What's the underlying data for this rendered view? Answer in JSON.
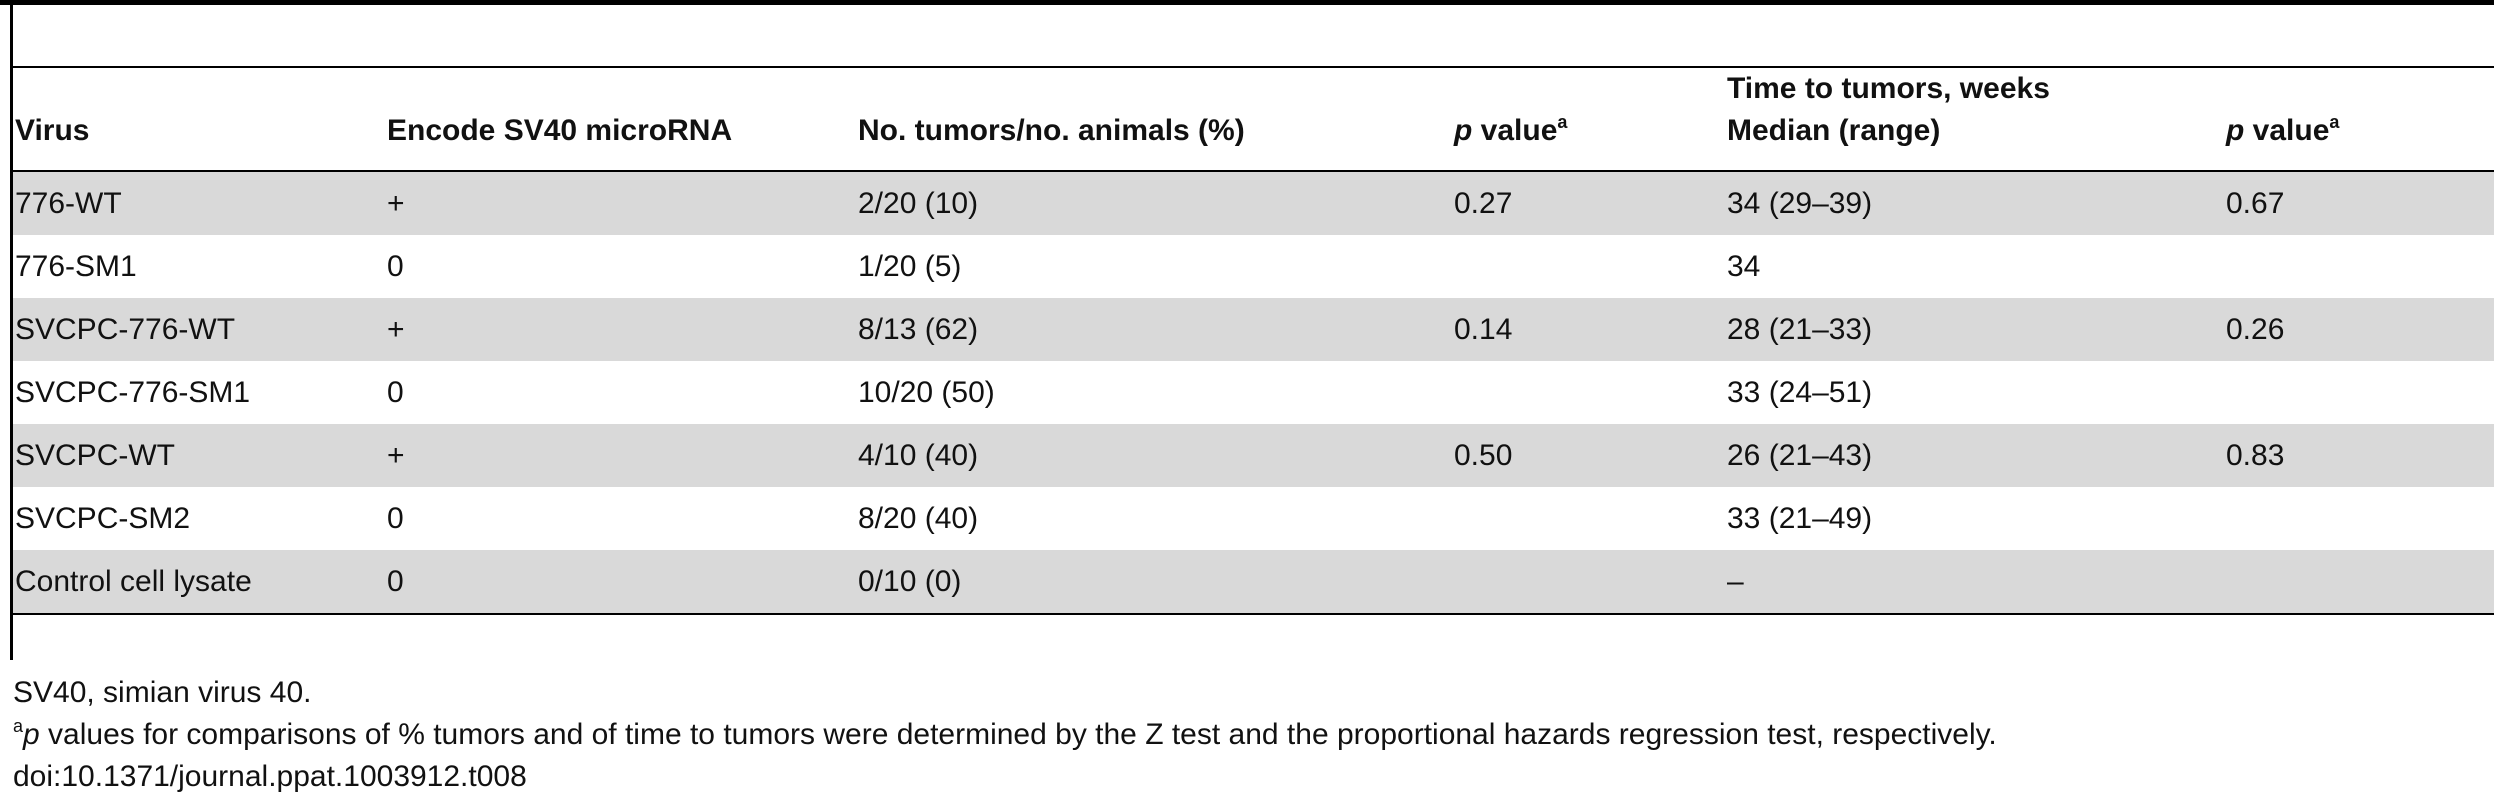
{
  "table": {
    "headers": {
      "virus": "Virus",
      "encode": "Encode SV40 microRNA",
      "tumors": "No. tumors/no. animals (%)",
      "p_value_1": {
        "italic": "p",
        "text": " value",
        "sup": "a"
      },
      "time_line1": "Time to tumors, weeks",
      "time_line2": "Median (range)",
      "p_value_2": {
        "italic": "p",
        "text": " value",
        "sup": "a"
      }
    },
    "rows": [
      {
        "virus": "776-WT",
        "encode": "+",
        "tumors": "2/20 (10)",
        "p1": "0.27",
        "time": "34 (29–39)",
        "p2": "0.67"
      },
      {
        "virus": "776-SM1",
        "encode": "0",
        "tumors": "1/20 (5)",
        "p1": "",
        "time": "34",
        "p2": ""
      },
      {
        "virus": "SVCPC-776-WT",
        "encode": "+",
        "tumors": "8/13 (62)",
        "p1": "0.14",
        "time": "28 (21–33)",
        "p2": "0.26"
      },
      {
        "virus": "SVCPC-776-SM1",
        "encode": "0",
        "tumors": "10/20 (50)",
        "p1": "",
        "time": "33 (24–51)",
        "p2": ""
      },
      {
        "virus": "SVCPC-WT",
        "encode": "+",
        "tumors": "4/10 (40)",
        "p1": "0.50",
        "time": "26 (21–43)",
        "p2": "0.83"
      },
      {
        "virus": "SVCPC-SM2",
        "encode": "0",
        "tumors": "8/20 (40)",
        "p1": "",
        "time": "33 (21–49)",
        "p2": ""
      },
      {
        "virus": "Control cell lysate",
        "encode": "0",
        "tumors": "0/10 (0)",
        "p1": "",
        "time": "–",
        "p2": ""
      }
    ]
  },
  "footnotes": {
    "abbreviation": "SV40, simian virus 40.",
    "note_a": {
      "marker": "a",
      "italic": "p",
      "text": " values for comparisons of % tumors and of time to tumors were determined by the Z test and the proportional hazards regression test, respectively."
    },
    "doi": "doi:10.1371/journal.ppat.1003912.t008"
  }
}
